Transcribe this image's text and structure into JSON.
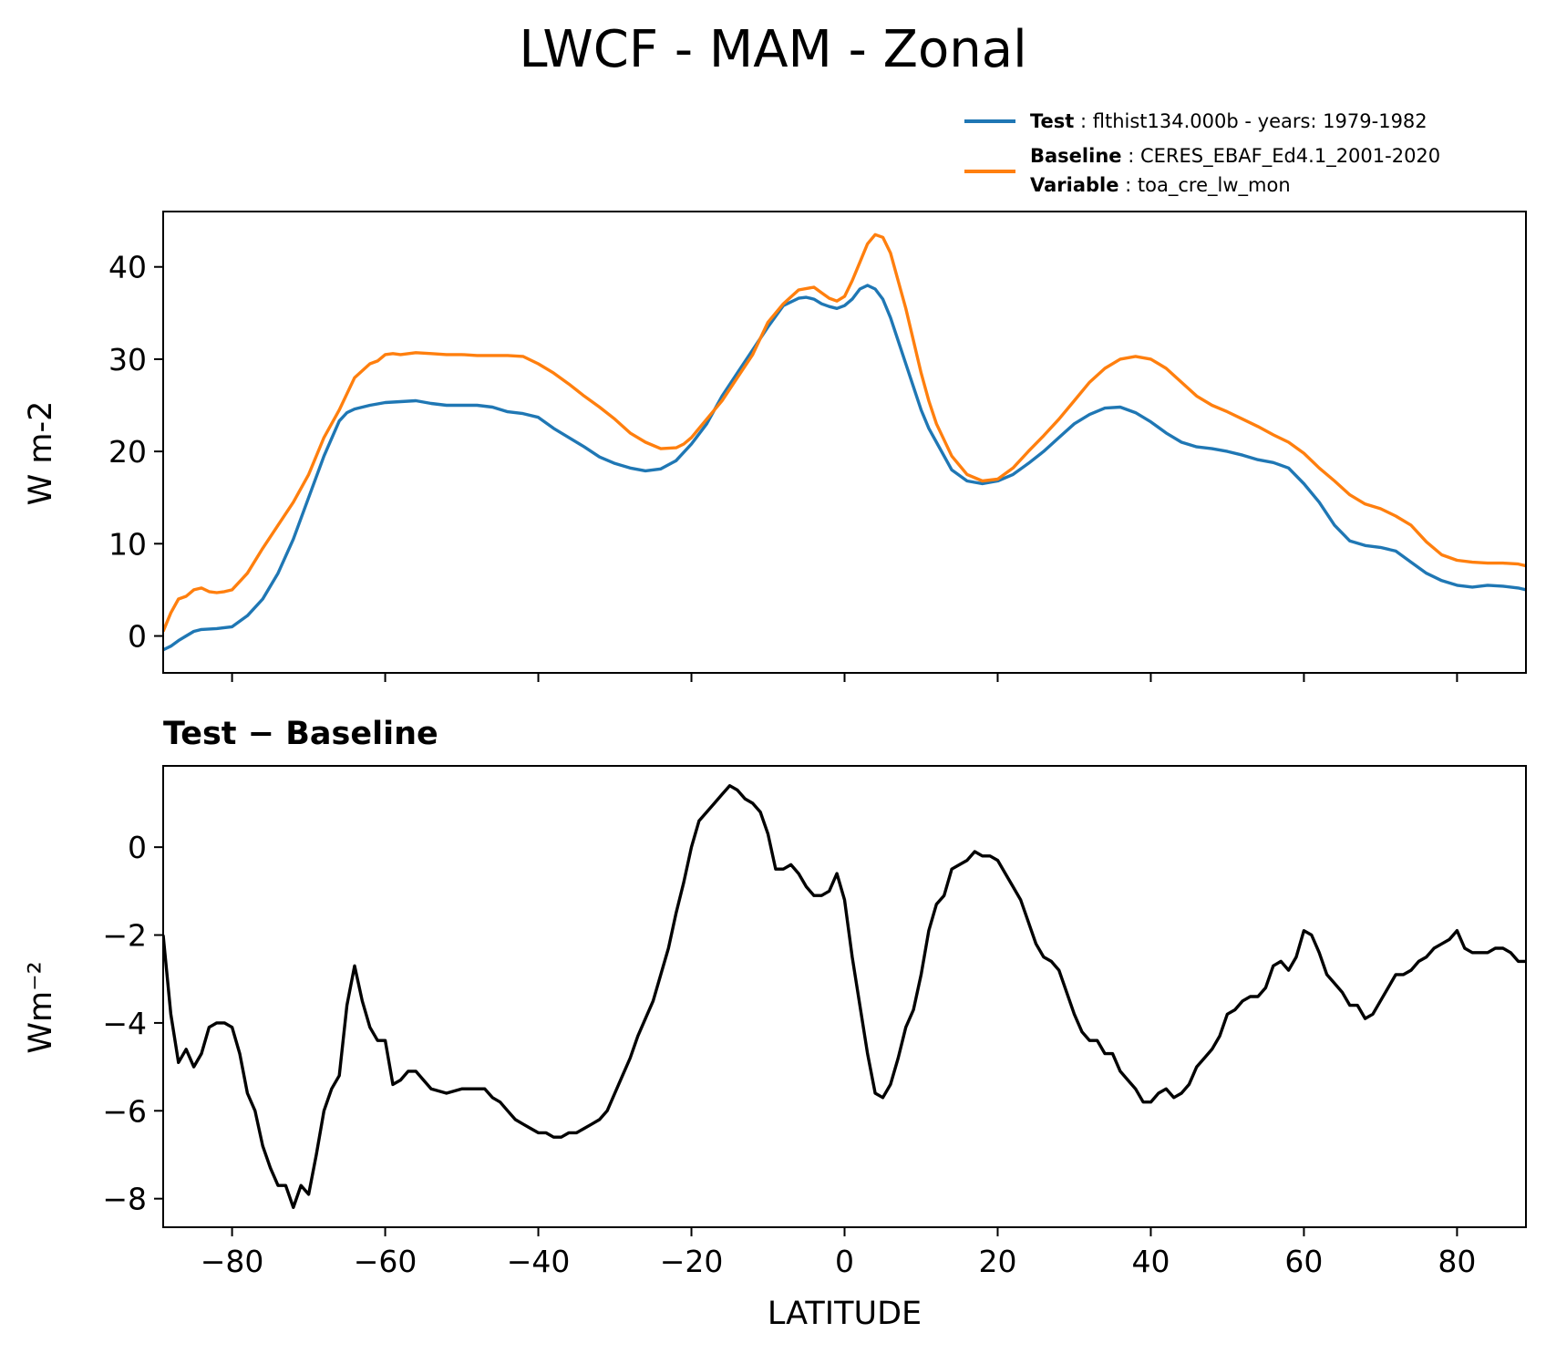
{
  "title": "LWCF - MAM - Zonal",
  "legend": {
    "test_key": "Test",
    "test_value": "flthist134.000b - years: 1979-1982",
    "baseline_key": "Baseline",
    "baseline_value": "CERES_EBAF_Ed4.1_2001-2020",
    "variable_key": "Variable",
    "variable_value": "toa_cre_lw_mon"
  },
  "colors": {
    "test": "#1f77b4",
    "baseline": "#ff7f0e",
    "diff": "#000000"
  },
  "chart_data": [
    {
      "type": "line",
      "title": "",
      "xlabel": "",
      "ylabel": "W m-2",
      "xlim": [
        -89,
        89
      ],
      "ylim": [
        -4,
        46
      ],
      "yticks": [
        0,
        10,
        20,
        30,
        40
      ],
      "yticklabels": [
        "0",
        "10",
        "20",
        "30",
        "40"
      ],
      "grid": false,
      "legend_position": "above-right",
      "series": [
        {
          "name": "Test",
          "color": "#1f77b4",
          "x": [
            -89,
            -88,
            -87,
            -86,
            -85,
            -84,
            -82,
            -80,
            -78,
            -76,
            -74,
            -72,
            -70,
            -68,
            -66,
            -65,
            -64,
            -62,
            -60,
            -58,
            -56,
            -54,
            -52,
            -50,
            -48,
            -46,
            -44,
            -42,
            -40,
            -38,
            -36,
            -34,
            -32,
            -30,
            -28,
            -26,
            -24,
            -22,
            -20,
            -18,
            -16,
            -14,
            -12,
            -10,
            -8,
            -6,
            -5,
            -4,
            -3,
            -2,
            -1,
            0,
            1,
            2,
            3,
            4,
            5,
            6,
            7,
            8,
            9,
            10,
            11,
            12,
            14,
            16,
            18,
            20,
            22,
            24,
            26,
            28,
            30,
            32,
            34,
            36,
            38,
            40,
            42,
            44,
            46,
            48,
            50,
            52,
            54,
            56,
            58,
            60,
            62,
            64,
            66,
            68,
            70,
            72,
            74,
            76,
            78,
            80,
            82,
            84,
            86,
            88,
            89
          ],
          "y": [
            -1.5,
            -1.1,
            -0.5,
            0.0,
            0.5,
            0.7,
            0.8,
            1.0,
            2.2,
            4.0,
            6.8,
            10.5,
            15.0,
            19.5,
            23.3,
            24.2,
            24.6,
            25.0,
            25.3,
            25.4,
            25.5,
            25.2,
            25.0,
            25.0,
            25.0,
            24.8,
            24.3,
            24.1,
            23.7,
            22.5,
            21.5,
            20.5,
            19.4,
            18.7,
            18.2,
            17.9,
            18.1,
            19.0,
            20.8,
            23.0,
            26.0,
            28.5,
            31.0,
            33.5,
            35.8,
            36.6,
            36.7,
            36.5,
            36.0,
            35.7,
            35.5,
            35.8,
            36.5,
            37.6,
            38.0,
            37.6,
            36.5,
            34.5,
            32.0,
            29.5,
            27.0,
            24.5,
            22.5,
            21.0,
            18.0,
            16.8,
            16.5,
            16.8,
            17.5,
            18.7,
            20.0,
            21.5,
            23.0,
            24.0,
            24.7,
            24.8,
            24.2,
            23.2,
            22.0,
            21.0,
            20.5,
            20.3,
            20.0,
            19.6,
            19.1,
            18.8,
            18.2,
            16.5,
            14.5,
            12.0,
            10.3,
            9.8,
            9.6,
            9.2,
            8.0,
            6.8,
            6.0,
            5.5,
            5.3,
            5.5,
            5.4,
            5.2,
            5.0
          ]
        },
        {
          "name": "Baseline",
          "color": "#ff7f0e",
          "x": [
            -89,
            -88,
            -87,
            -86,
            -85,
            -84,
            -83,
            -82,
            -81,
            -80,
            -78,
            -76,
            -74,
            -72,
            -70,
            -68,
            -66,
            -64,
            -62,
            -61,
            -60,
            -59,
            -58,
            -56,
            -54,
            -52,
            -50,
            -48,
            -46,
            -44,
            -42,
            -40,
            -38,
            -36,
            -34,
            -32,
            -30,
            -28,
            -26,
            -24,
            -22,
            -21,
            -20,
            -18,
            -16,
            -14,
            -12,
            -10,
            -8,
            -6,
            -4,
            -3,
            -2,
            -1,
            0,
            1,
            2,
            3,
            4,
            5,
            6,
            7,
            8,
            9,
            10,
            11,
            12,
            14,
            16,
            18,
            20,
            22,
            24,
            26,
            28,
            30,
            32,
            34,
            36,
            38,
            40,
            42,
            44,
            46,
            48,
            50,
            52,
            54,
            56,
            58,
            60,
            62,
            64,
            66,
            68,
            70,
            72,
            74,
            76,
            78,
            80,
            82,
            84,
            86,
            88,
            89
          ],
          "y": [
            0.5,
            2.5,
            4.0,
            4.3,
            5.0,
            5.2,
            4.8,
            4.7,
            4.8,
            5.0,
            6.8,
            9.5,
            12.0,
            14.5,
            17.5,
            21.5,
            24.5,
            28.0,
            29.5,
            29.8,
            30.5,
            30.6,
            30.5,
            30.7,
            30.6,
            30.5,
            30.5,
            30.4,
            30.4,
            30.4,
            30.3,
            29.5,
            28.5,
            27.3,
            26.0,
            24.8,
            23.5,
            22.0,
            21.0,
            20.3,
            20.4,
            20.8,
            21.5,
            23.5,
            25.5,
            28.0,
            30.5,
            34.0,
            36.0,
            37.5,
            37.8,
            37.2,
            36.6,
            36.3,
            36.8,
            38.5,
            40.5,
            42.5,
            43.5,
            43.2,
            41.5,
            38.5,
            35.5,
            32.0,
            28.5,
            25.5,
            23.0,
            19.5,
            17.5,
            16.8,
            17.0,
            18.2,
            20.0,
            21.7,
            23.5,
            25.5,
            27.5,
            29.0,
            30.0,
            30.3,
            30.0,
            29.0,
            27.5,
            26.0,
            25.0,
            24.3,
            23.5,
            22.7,
            21.8,
            21.0,
            19.8,
            18.2,
            16.8,
            15.3,
            14.3,
            13.8,
            13.0,
            12.0,
            10.2,
            8.8,
            8.2,
            8.0,
            7.9,
            7.9,
            7.8,
            7.6
          ]
        }
      ]
    },
    {
      "type": "line",
      "title": "Test − Baseline",
      "xlabel": "LATITUDE",
      "ylabel": "Wm⁻²",
      "xlim": [
        -89,
        89
      ],
      "ylim": [
        -8.65,
        1.85
      ],
      "xticks": [
        -80,
        -60,
        -40,
        -20,
        0,
        20,
        40,
        60,
        80
      ],
      "xticklabels": [
        "−80",
        "−60",
        "−40",
        "−20",
        "0",
        "20",
        "40",
        "60",
        "80"
      ],
      "yticks": [
        0,
        -2,
        -4,
        -6,
        -8
      ],
      "yticklabels": [
        "0",
        "−2",
        "−4",
        "−6",
        "−8"
      ],
      "grid": false,
      "series": [
        {
          "name": "",
          "color": "#000000",
          "x": [
            -89,
            -88,
            -87,
            -86,
            -85,
            -84,
            -83,
            -82,
            -81,
            -80,
            -79,
            -78,
            -77,
            -76,
            -75,
            -74,
            -73,
            -72,
            -71,
            -70,
            -69,
            -68,
            -67,
            -66,
            -65,
            -64,
            -63,
            -62,
            -61,
            -60,
            -59,
            -58,
            -57,
            -56,
            -55,
            -54,
            -52,
            -50,
            -48,
            -47,
            -46,
            -45,
            -44,
            -43,
            -42,
            -41,
            -40,
            -39,
            -38,
            -37,
            -36,
            -35,
            -34,
            -33,
            -32,
            -31,
            -30,
            -29,
            -28,
            -27,
            -26,
            -25,
            -24,
            -23,
            -22,
            -21,
            -20,
            -19,
            -18,
            -17,
            -16,
            -15,
            -14,
            -13,
            -12,
            -11,
            -10,
            -9,
            -8,
            -7,
            -6,
            -5,
            -4,
            -3,
            -2,
            -1,
            0,
            1,
            2,
            3,
            4,
            5,
            6,
            7,
            8,
            9,
            10,
            11,
            12,
            13,
            14,
            15,
            16,
            17,
            18,
            19,
            20,
            21,
            22,
            23,
            24,
            25,
            26,
            27,
            28,
            29,
            30,
            31,
            32,
            33,
            34,
            35,
            36,
            37,
            38,
            39,
            40,
            41,
            42,
            43,
            44,
            45,
            46,
            47,
            48,
            49,
            50,
            51,
            52,
            53,
            54,
            55,
            56,
            57,
            58,
            59,
            60,
            61,
            62,
            63,
            64,
            65,
            66,
            67,
            68,
            69,
            70,
            71,
            72,
            73,
            74,
            75,
            76,
            77,
            78,
            79,
            80,
            81,
            82,
            83,
            84,
            85,
            86,
            87,
            88,
            89
          ],
          "y": [
            -2.0,
            -3.8,
            -4.9,
            -4.6,
            -5.0,
            -4.7,
            -4.1,
            -4.0,
            -4.0,
            -4.1,
            -4.7,
            -5.6,
            -6.0,
            -6.8,
            -7.3,
            -7.7,
            -7.7,
            -8.2,
            -7.7,
            -7.9,
            -7.0,
            -6.0,
            -5.5,
            -5.2,
            -3.6,
            -2.7,
            -3.5,
            -4.1,
            -4.4,
            -4.4,
            -5.4,
            -5.3,
            -5.1,
            -5.1,
            -5.3,
            -5.5,
            -5.6,
            -5.5,
            -5.5,
            -5.5,
            -5.7,
            -5.8,
            -6.0,
            -6.2,
            -6.3,
            -6.4,
            -6.5,
            -6.5,
            -6.6,
            -6.6,
            -6.5,
            -6.5,
            -6.4,
            -6.3,
            -6.2,
            -6.0,
            -5.6,
            -5.2,
            -4.8,
            -4.3,
            -3.9,
            -3.5,
            -2.9,
            -2.3,
            -1.5,
            -0.8,
            0.0,
            0.6,
            0.8,
            1.0,
            1.2,
            1.4,
            1.3,
            1.1,
            1.0,
            0.8,
            0.3,
            -0.5,
            -0.5,
            -0.4,
            -0.6,
            -0.9,
            -1.1,
            -1.1,
            -1.0,
            -0.6,
            -1.2,
            -2.5,
            -3.6,
            -4.7,
            -5.6,
            -5.7,
            -5.4,
            -4.8,
            -4.1,
            -3.7,
            -2.9,
            -1.9,
            -1.3,
            -1.1,
            -0.5,
            -0.4,
            -0.3,
            -0.1,
            -0.2,
            -0.2,
            -0.3,
            -0.6,
            -0.9,
            -1.2,
            -1.7,
            -2.2,
            -2.5,
            -2.6,
            -2.8,
            -3.3,
            -3.8,
            -4.2,
            -4.4,
            -4.4,
            -4.7,
            -4.7,
            -5.1,
            -5.3,
            -5.5,
            -5.8,
            -5.8,
            -5.6,
            -5.5,
            -5.7,
            -5.6,
            -5.4,
            -5.0,
            -4.8,
            -4.6,
            -4.3,
            -3.8,
            -3.7,
            -3.5,
            -3.4,
            -3.4,
            -3.2,
            -2.7,
            -2.6,
            -2.8,
            -2.5,
            -1.9,
            -2.0,
            -2.4,
            -2.9,
            -3.1,
            -3.3,
            -3.6,
            -3.6,
            -3.9,
            -3.8,
            -3.5,
            -3.2,
            -2.9,
            -2.9,
            -2.8,
            -2.6,
            -2.5,
            -2.3,
            -2.2,
            -2.1,
            -1.9,
            -2.3,
            -2.4,
            -2.4,
            -2.4,
            -2.3,
            -2.3,
            -2.4,
            -2.6,
            -2.6
          ]
        }
      ]
    }
  ]
}
